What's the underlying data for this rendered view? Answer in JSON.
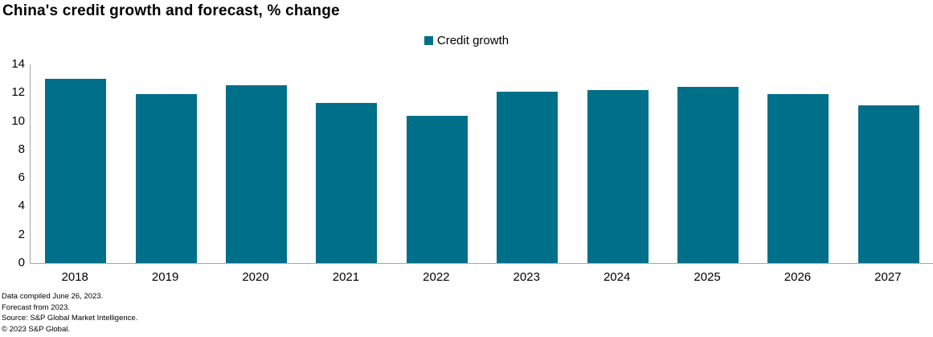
{
  "title": "China's credit growth and forecast, % change",
  "legend": {
    "label": "Credit growth"
  },
  "chart_data": {
    "type": "bar",
    "title": "China's credit growth and forecast, % change",
    "categories": [
      "2018",
      "2019",
      "2020",
      "2021",
      "2022",
      "2023",
      "2024",
      "2025",
      "2026",
      "2027"
    ],
    "series": [
      {
        "name": "Credit growth",
        "values": [
          13.0,
          11.9,
          12.5,
          11.3,
          10.4,
          12.1,
          12.2,
          12.4,
          11.9,
          11.1
        ]
      }
    ],
    "xlabel": "",
    "ylabel": "",
    "ylim": [
      0,
      14
    ],
    "yticks": [
      0,
      2,
      4,
      6,
      8,
      10,
      12,
      14
    ],
    "grid": false,
    "legend_position": "top-center"
  },
  "colors": {
    "bar": "#006f8a",
    "axis_line": "#a6a6a6",
    "text": "#000000"
  },
  "footer": {
    "lines": [
      "Data compiled June 26, 2023.",
      "Forecast from 2023.",
      "Source: S&P Global Market Intelligence.",
      "© 2023 S&P Global."
    ]
  }
}
